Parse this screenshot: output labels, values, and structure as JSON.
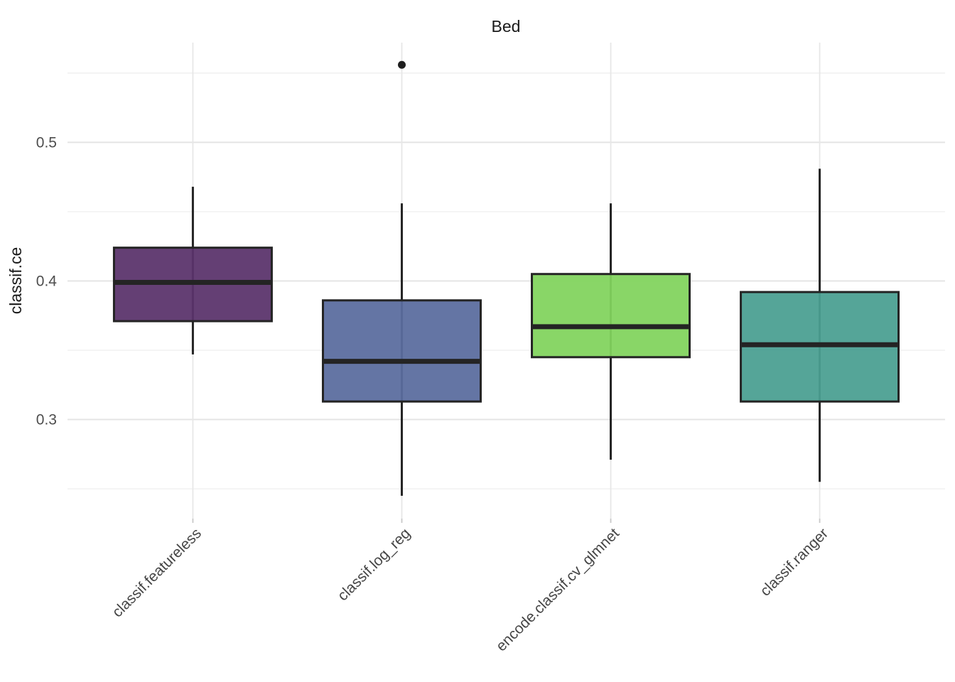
{
  "title": "Bed",
  "y_axis": {
    "label": "classif.ce",
    "major_tick_labels": [
      "0.3",
      "0.4",
      "0.5"
    ]
  },
  "x_axis": {
    "label": "",
    "tick_labels": [
      "classif.featureless",
      "classif.log_reg",
      "encode.classif.cv_glmnet",
      "classif.ranger"
    ]
  },
  "colors": {
    "background": "#FFFFFF",
    "grid_major": "#E4E4E4",
    "grid_minor": "#EDEDED",
    "grid_vertical": "#E7E7E7",
    "axis_tick_mark": "#C9C9C9",
    "box_stroke": "#242424",
    "outlier": "#1F1F1F",
    "tick_text": "#4D4D4D",
    "category_text": "#454545",
    "title_text": "#1A1A1A"
  },
  "chart_data": {
    "type": "boxplot",
    "title": "Bed",
    "xlabel": "",
    "ylabel": "classif.ce",
    "ylim": [
      0.2285,
      0.572
    ],
    "y_major_ticks": [
      0.3,
      0.4,
      0.5
    ],
    "y_minor_ticks": [
      0.25,
      0.35,
      0.45,
      0.55
    ],
    "grid": true,
    "legend": false,
    "categories": [
      "classif.featureless",
      "classif.log_reg",
      "encode.classif.cv_glmnet",
      "classif.ranger"
    ],
    "series": [
      {
        "name": "classif.featureless",
        "fill": "#5A336B",
        "whisker_low": 0.347,
        "q1": 0.371,
        "median": 0.399,
        "q3": 0.424,
        "whisker_high": 0.468,
        "outliers": []
      },
      {
        "name": "classif.log_reg",
        "fill": "#5A6C9E",
        "whisker_low": 0.245,
        "q1": 0.313,
        "median": 0.342,
        "q3": 0.386,
        "whisker_high": 0.456,
        "outliers": [
          0.556
        ]
      },
      {
        "name": "encode.classif.cv_glmnet",
        "fill": "#82D35E",
        "whisker_low": 0.271,
        "q1": 0.345,
        "median": 0.367,
        "q3": 0.405,
        "whisker_high": 0.456,
        "outliers": []
      },
      {
        "name": "classif.ranger",
        "fill": "#4A9F92",
        "whisker_low": 0.255,
        "q1": 0.313,
        "median": 0.354,
        "q3": 0.392,
        "whisker_high": 0.481,
        "outliers": []
      }
    ]
  }
}
